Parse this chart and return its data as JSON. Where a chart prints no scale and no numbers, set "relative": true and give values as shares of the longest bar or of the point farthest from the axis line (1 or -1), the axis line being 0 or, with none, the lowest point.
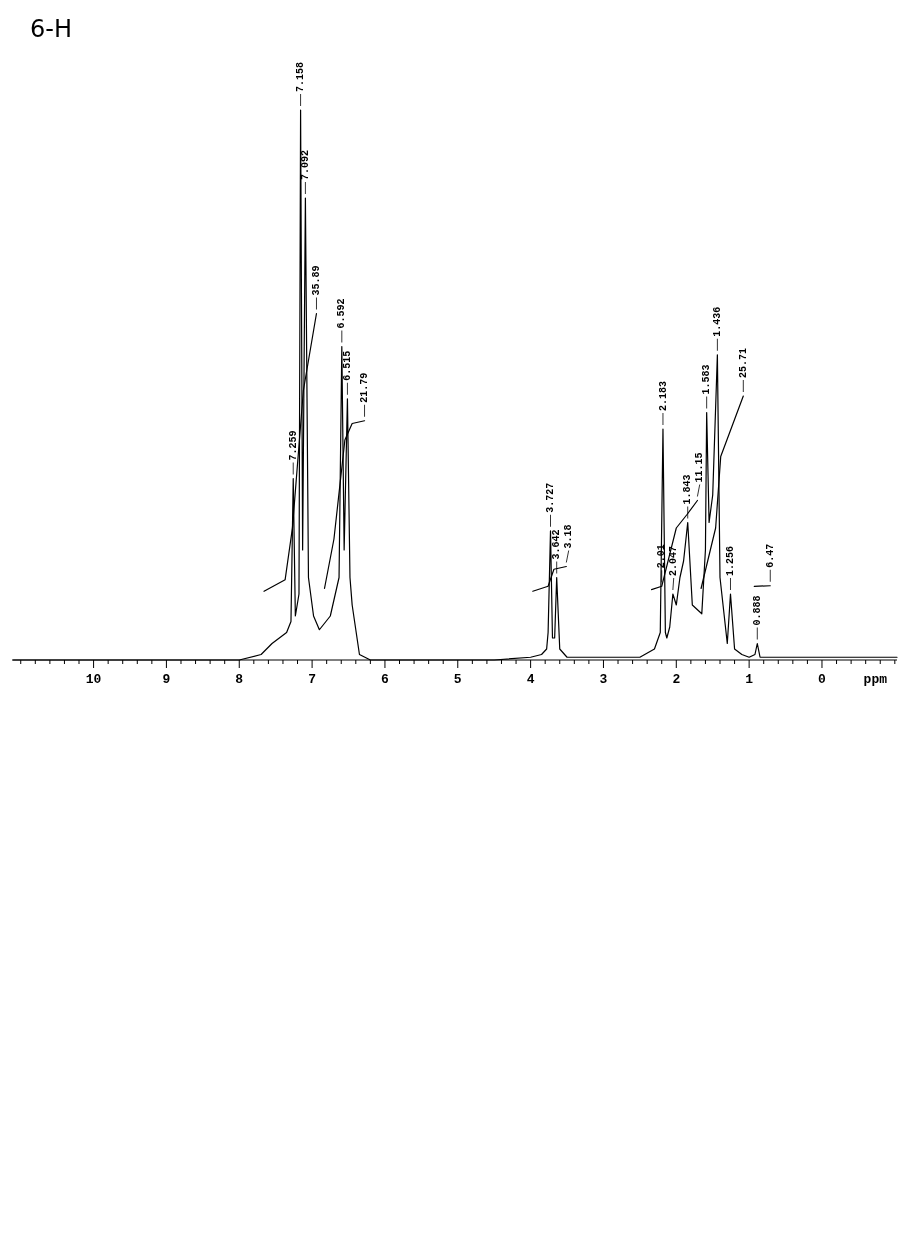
{
  "chart_data": {
    "type": "line",
    "title": "6-H",
    "xlabel": "ppm",
    "relative": true,
    "xlim": [
      11.12,
      -1.03
    ],
    "xticks": [
      {
        "value": 11,
        "label": null
      },
      {
        "value": 10.8,
        "label": null
      },
      {
        "value": 10.6,
        "label": null
      },
      {
        "value": 10.4,
        "label": null
      },
      {
        "value": 10.2,
        "label": null
      },
      10,
      {
        "value": 9.8,
        "label": null
      },
      {
        "value": 9.6,
        "label": null
      },
      {
        "value": 9.4,
        "label": null
      },
      {
        "value": 9.2,
        "label": null
      },
      9,
      {
        "value": 8.8,
        "label": null
      },
      {
        "value": 8.6,
        "label": null
      },
      {
        "value": 8.4,
        "label": null
      },
      {
        "value": 8.2,
        "label": null
      },
      8,
      {
        "value": 7.8,
        "label": null
      },
      {
        "value": 7.6,
        "label": null
      },
      {
        "value": 7.4,
        "label": null
      },
      {
        "value": 7.2,
        "label": null
      },
      7,
      {
        "value": 6.8,
        "label": null
      },
      {
        "value": 6.6,
        "label": null
      },
      {
        "value": 6.4,
        "label": null
      },
      {
        "value": 6.2,
        "label": null
      },
      6,
      {
        "value": 5.8,
        "label": null
      },
      {
        "value": 5.6,
        "label": null
      },
      {
        "value": 5.4,
        "label": null
      },
      {
        "value": 5.2,
        "label": null
      },
      5,
      {
        "value": 4.8,
        "label": null
      },
      {
        "value": 4.6,
        "label": null
      },
      {
        "value": 4.4,
        "label": null
      },
      {
        "value": 4.2,
        "label": null
      },
      4,
      {
        "value": 3.8,
        "label": null
      },
      {
        "value": 3.6,
        "label": null
      },
      {
        "value": 3.4,
        "label": null
      },
      {
        "value": 3.2,
        "label": null
      },
      3,
      {
        "value": 2.8,
        "label": null
      },
      {
        "value": 2.6,
        "label": null
      },
      {
        "value": 2.4,
        "label": null
      },
      {
        "value": 2.2,
        "label": null
      },
      2,
      {
        "value": 1.8,
        "label": null
      },
      {
        "value": 1.6,
        "label": null
      },
      {
        "value": 1.4,
        "label": null
      },
      {
        "value": 1.2,
        "label": null
      },
      1,
      {
        "value": 0.8,
        "label": null
      },
      {
        "value": 0.6,
        "label": null
      },
      {
        "value": 0.4,
        "label": null
      },
      {
        "value": 0.2,
        "label": null
      },
      0,
      {
        "value": -0.2,
        "label": null
      },
      {
        "value": -0.4,
        "label": null
      },
      {
        "value": -0.6,
        "label": null
      },
      {
        "value": -0.8,
        "label": null
      },
      {
        "value": -1,
        "label": null
      }
    ],
    "series": [
      {
        "color": "#000000",
        "x": [
          11.1,
          8.0,
          7.7,
          7.55,
          7.35,
          7.29,
          7.259,
          7.23,
          7.18,
          7.158,
          7.13,
          7.092,
          7.05,
          6.98,
          6.9,
          6.75,
          6.63,
          6.592,
          6.56,
          6.515,
          6.48,
          6.45,
          6.35,
          6.2,
          4.5,
          4.0,
          3.85,
          3.78,
          3.76,
          3.727,
          3.7,
          3.67,
          3.642,
          3.6,
          3.5,
          2.5,
          2.3,
          2.22,
          2.183,
          2.15,
          2.13,
          2.09,
          2.047,
          2.0,
          1.95,
          1.9,
          1.843,
          1.78,
          1.65,
          1.6,
          1.583,
          1.55,
          1.5,
          1.436,
          1.4,
          1.3,
          1.256,
          1.2,
          1.1,
          1.0,
          0.92,
          0.888,
          0.85,
          0.7,
          -1.03
        ],
        "values": [
          0,
          0,
          0.01,
          0.03,
          0.05,
          0.07,
          0.33,
          0.08,
          0.12,
          1.0,
          0.2,
          0.84,
          0.15,
          0.08,
          0.055,
          0.08,
          0.15,
          0.57,
          0.2,
          0.475,
          0.15,
          0.1,
          0.01,
          0,
          0,
          0.005,
          0.01,
          0.02,
          0.05,
          0.235,
          0.04,
          0.04,
          0.15,
          0.02,
          0.005,
          0.005,
          0.02,
          0.05,
          0.42,
          0.05,
          0.04,
          0.06,
          0.12,
          0.1,
          0.15,
          0.18,
          0.25,
          0.1,
          0.084,
          0.2,
          0.45,
          0.25,
          0.3,
          0.555,
          0.15,
          0.03,
          0.12,
          0.02,
          0.01,
          0.005,
          0.01,
          0.03,
          0.005,
          0.005,
          0.005
        ]
      },
      {
        "color": "#000000",
        "x": [
          7.66,
          7.37,
          7.27,
          7.12,
          6.94,
          null,
          6.83,
          6.7,
          6.55,
          6.45,
          6.28,
          null,
          3.97,
          3.76,
          3.68,
          3.51,
          null,
          2.34,
          2.2,
          2.0,
          1.85,
          1.71,
          null,
          1.66,
          1.46,
          1.39,
          1.08,
          null,
          0.93,
          0.71
        ],
        "values": [
          0.125,
          0.146,
          0.24,
          0.49,
          0.63,
          null,
          0.13,
          0.22,
          0.4,
          0.43,
          0.435,
          null,
          0.125,
          0.134,
          0.165,
          0.17,
          null,
          0.128,
          0.134,
          0.24,
          0.265,
          0.29,
          null,
          0.13,
          0.24,
          0.37,
          0.48,
          null,
          0.134,
          0.135
        ]
      }
    ],
    "annotations": [
      {
        "text": "7.259",
        "x": 7.259,
        "y": 0.33
      },
      {
        "text": "7.092",
        "x": 7.092,
        "y": 0.84
      },
      {
        "text": "7.158",
        "x": 7.158,
        "y": 1.0
      },
      {
        "text": "6.592",
        "x": 6.592,
        "y": 0.57
      },
      {
        "text": "6.515",
        "x": 6.515,
        "y": 0.475
      },
      {
        "text": "3.727",
        "x": 3.727,
        "y": 0.235
      },
      {
        "text": "3.642",
        "x": 3.642,
        "y": 0.15
      },
      {
        "text": "2.183",
        "x": 2.183,
        "y": 0.42
      },
      {
        "text": "2.047",
        "x": 2.047,
        "y": 0.12
      },
      {
        "text": "1.843",
        "x": 1.843,
        "y": 0.25
      },
      {
        "text": "1.583",
        "x": 1.583,
        "y": 0.45
      },
      {
        "text": "1.436",
        "x": 1.436,
        "y": 0.555
      },
      {
        "text": "1.256",
        "x": 1.256,
        "y": 0.12
      },
      {
        "text": "0.888",
        "x": 0.888,
        "y": 0.03
      },
      {
        "text": "35.89",
        "x": 6.94,
        "y": 0.63
      },
      {
        "text": "21.79",
        "x": 6.28,
        "y": 0.435
      },
      {
        "text": "3.18",
        "x": 3.51,
        "y": 0.17
      },
      {
        "text": "2.01",
        "x": 2.2,
        "y": 0.134
      },
      {
        "text": "11.15",
        "x": 1.71,
        "y": 0.29
      },
      {
        "text": "25.71",
        "x": 1.08,
        "y": 0.48
      },
      {
        "text": "6.47",
        "x": 0.71,
        "y": 0.135
      }
    ]
  }
}
